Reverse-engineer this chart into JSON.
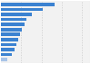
{
  "values": [
    13.2,
    10.4,
    7.5,
    6.3,
    5.7,
    5.2,
    4.6,
    4.1,
    3.7,
    3.2,
    2.7,
    1.5
  ],
  "bar_colors": [
    "#3b82d1",
    "#3b82d1",
    "#3b82d1",
    "#3b82d1",
    "#3b82d1",
    "#3b82d1",
    "#3b82d1",
    "#3b82d1",
    "#3b82d1",
    "#3b82d1",
    "#3b82d1",
    "#a8c4e8"
  ],
  "background_color": "#ffffff",
  "plot_bg_color": "#f2f2f2",
  "xlim": [
    0,
    22
  ],
  "grid_color": "#cccccc",
  "grid_linewidth": 0.5,
  "bar_height": 0.65
}
